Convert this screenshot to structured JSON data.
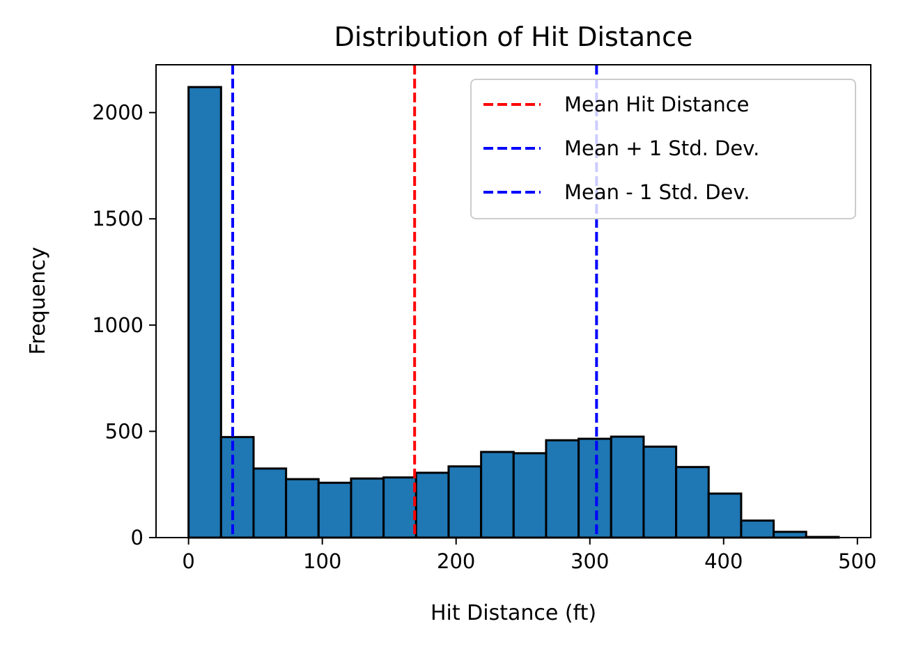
{
  "chart_data": {
    "type": "bar",
    "title": "Distribution of Hit Distance",
    "xlabel": "Hit Distance (ft)",
    "ylabel": "Frequency",
    "xlim": [
      -24.3,
      510
    ],
    "ylim": [
      0,
      2225
    ],
    "xticks": [
      0,
      100,
      200,
      300,
      400,
      500
    ],
    "yticks": [
      0,
      500,
      1000,
      1500,
      2000
    ],
    "grid": false,
    "bar_color": "#1f77b4",
    "edge_color": "#000000",
    "bins": [
      {
        "x0": 0,
        "x1": 24.3,
        "count": 2120
      },
      {
        "x0": 24.3,
        "x1": 48.6,
        "count": 473
      },
      {
        "x0": 48.6,
        "x1": 72.9,
        "count": 325
      },
      {
        "x0": 72.9,
        "x1": 97.2,
        "count": 275
      },
      {
        "x0": 97.2,
        "x1": 121.5,
        "count": 258
      },
      {
        "x0": 121.5,
        "x1": 145.8,
        "count": 278
      },
      {
        "x0": 145.8,
        "x1": 170.1,
        "count": 283
      },
      {
        "x0": 170.1,
        "x1": 194.4,
        "count": 305
      },
      {
        "x0": 194.4,
        "x1": 218.7,
        "count": 335
      },
      {
        "x0": 218.7,
        "x1": 243.0,
        "count": 403
      },
      {
        "x0": 243.0,
        "x1": 267.3,
        "count": 397
      },
      {
        "x0": 267.3,
        "x1": 291.6,
        "count": 458
      },
      {
        "x0": 291.6,
        "x1": 315.9,
        "count": 465
      },
      {
        "x0": 315.9,
        "x1": 340.2,
        "count": 475
      },
      {
        "x0": 340.2,
        "x1": 364.5,
        "count": 428
      },
      {
        "x0": 364.5,
        "x1": 388.8,
        "count": 332
      },
      {
        "x0": 388.8,
        "x1": 413.1,
        "count": 207
      },
      {
        "x0": 413.1,
        "x1": 437.4,
        "count": 80
      },
      {
        "x0": 437.4,
        "x1": 461.7,
        "count": 27
      },
      {
        "x0": 461.7,
        "x1": 486.0,
        "count": 3
      }
    ],
    "reference_lines": [
      {
        "name": "Mean Hit Distance",
        "x": 169,
        "color": "#ff0000",
        "style": "dashed"
      },
      {
        "name": "Mean + 1 Std. Dev.",
        "x": 305,
        "color": "#0000ff",
        "style": "dashed"
      },
      {
        "name": "Mean - 1 Std. Dev.",
        "x": 33,
        "color": "#0000ff",
        "style": "dashed"
      }
    ],
    "legend_placement": "top-right"
  }
}
